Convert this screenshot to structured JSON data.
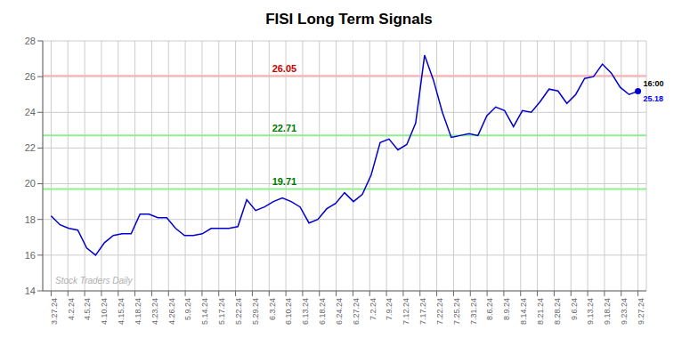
{
  "chart_data": {
    "type": "line",
    "title": "FISI Long Term Signals",
    "color": "#0000cc",
    "grid": true,
    "x": [
      0,
      0.530303,
      1.060606,
      1.590909,
      2.121212,
      2.651515,
      3.181818,
      3.712121,
      4.242424,
      4.772727,
      5.30303,
      5.833333,
      6.363636,
      6.893939,
      7.424242,
      7.954545,
      8.484848,
      9.015152,
      9.545455,
      10.075758,
      10.606061,
      11.136364,
      11.666667,
      12.19697,
      12.727273,
      13.257576,
      13.787879,
      14.318182,
      14.848485,
      15.378788,
      15.909091,
      16.439394,
      16.969697,
      17.5,
      18.030303,
      18.560606,
      19.090909,
      19.621212,
      20.151515,
      20.681818,
      21.212121,
      21.742424,
      22.272727,
      22.80303,
      23.333333,
      23.863636,
      24.393939,
      24.924242,
      25.454545,
      25.984848,
      26.515152,
      27.045455,
      27.575758,
      28.106061,
      28.636364,
      29.166667,
      29.69697,
      30.227273,
      30.757576,
      31.287879,
      31.818182,
      32.348485,
      32.878788,
      33.409091,
      33.939394,
      34.469697,
      35
    ],
    "values": [
      18.2,
      17.7,
      17.5,
      17.4,
      16.4,
      16.0,
      16.7,
      17.1,
      17.2,
      17.2,
      18.3,
      18.3,
      18.1,
      18.1,
      17.5,
      17.1,
      17.1,
      17.2,
      17.5,
      17.5,
      17.5,
      17.6,
      19.1,
      18.5,
      18.7,
      19.0,
      19.2,
      19.0,
      18.7,
      17.8,
      18.0,
      18.6,
      18.9,
      19.5,
      19.0,
      19.4,
      20.5,
      22.3,
      22.5,
      21.9,
      22.2,
      23.4,
      27.2,
      25.8,
      24.0,
      22.6,
      22.7,
      22.8,
      22.7,
      23.8,
      24.3,
      24.1,
      23.2,
      24.1,
      24.0,
      24.6,
      25.3,
      25.2,
      24.5,
      25.0,
      25.9,
      26.0,
      26.7,
      26.2,
      25.4,
      25.0,
      25.18
    ],
    "xlim": [
      -0.5,
      35.5
    ],
    "xticks": [
      {
        "value": 0,
        "label": "3.27.24"
      },
      {
        "value": 1,
        "label": "4.2.24"
      },
      {
        "value": 2,
        "label": "4.5.24"
      },
      {
        "value": 3,
        "label": "4.10.24"
      },
      {
        "value": 4,
        "label": "4.15.24"
      },
      {
        "value": 5,
        "label": "4.18.24"
      },
      {
        "value": 6,
        "label": "4.23.24"
      },
      {
        "value": 7,
        "label": "4.26.24"
      },
      {
        "value": 8,
        "label": "5.9.24"
      },
      {
        "value": 9,
        "label": "5.14.24"
      },
      {
        "value": 10,
        "label": "5.17.24"
      },
      {
        "value": 11,
        "label": "5.22.24"
      },
      {
        "value": 12,
        "label": "5.29.24"
      },
      {
        "value": 13,
        "label": "6.3.24"
      },
      {
        "value": 14,
        "label": "6.10.24"
      },
      {
        "value": 15,
        "label": "6.13.24"
      },
      {
        "value": 16,
        "label": "6.18.24"
      },
      {
        "value": 17,
        "label": "6.24.24"
      },
      {
        "value": 18,
        "label": "6.27.24"
      },
      {
        "value": 19,
        "label": "7.2.24"
      },
      {
        "value": 20,
        "label": "7.9.24"
      },
      {
        "value": 21,
        "label": "7.12.24"
      },
      {
        "value": 22,
        "label": "7.17.24"
      },
      {
        "value": 23,
        "label": "7.22.24"
      },
      {
        "value": 24,
        "label": "7.25.24"
      },
      {
        "value": 25,
        "label": "7.31.24"
      },
      {
        "value": 26,
        "label": "8.6.24"
      },
      {
        "value": 27,
        "label": "8.9.24"
      },
      {
        "value": 28,
        "label": "8.14.24"
      },
      {
        "value": 29,
        "label": "8.21.24"
      },
      {
        "value": 30,
        "label": "8.28.24"
      },
      {
        "value": 31,
        "label": "9.6.24"
      },
      {
        "value": 32,
        "label": "9.13.24"
      },
      {
        "value": 33,
        "label": "9.18.24"
      },
      {
        "value": 34,
        "label": "9.23.24"
      },
      {
        "value": 35,
        "label": "9.27.24"
      }
    ],
    "ylim": [
      14,
      28
    ],
    "yticks": [
      14,
      16,
      18,
      20,
      22,
      24,
      26,
      28
    ],
    "hlines": [
      {
        "y": 26.05,
        "color": "#ffb3b3",
        "label": "26.05",
        "label_color": "#cc0000"
      },
      {
        "y": 22.71,
        "color": "#90ee90",
        "label": "22.71",
        "label_color": "#007700"
      },
      {
        "y": 19.71,
        "color": "#90ee90",
        "label": "19.71",
        "label_color": "#007700"
      }
    ],
    "end_point": {
      "color": "#0000cc",
      "time_label": "16:00",
      "value_label": "25.18",
      "value_label_color": "#0000ff"
    },
    "watermark": "Stock Traders Daily",
    "watermark_color": "#b0b0b0"
  }
}
